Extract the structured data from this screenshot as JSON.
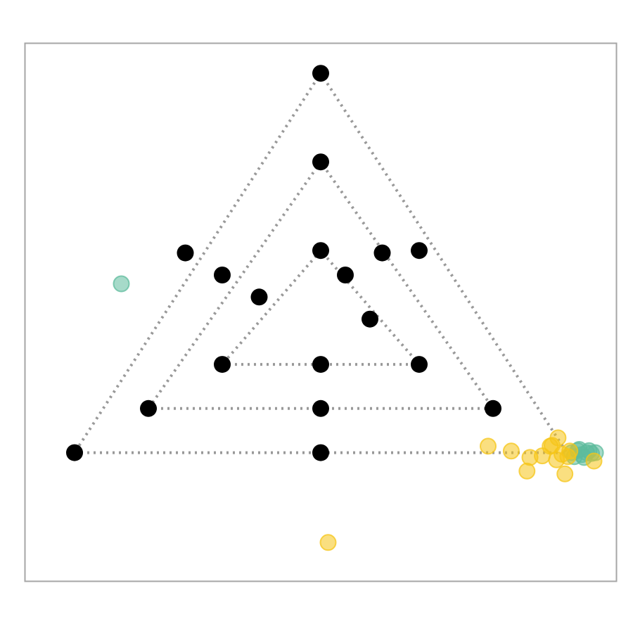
{
  "chart_data": {
    "type": "scatter",
    "title": "",
    "xlabel": "",
    "ylabel": "",
    "xlim": [
      -0.1,
      1.1
    ],
    "ylim": [
      -0.32,
      1.02
    ],
    "grid": false,
    "frame_color": "#a6a6a6",
    "guide_color": "#999999",
    "guide_style": "dotted",
    "triangle_guides": [
      {
        "name": "outer",
        "vertices": [
          [
            0.0,
            0.0
          ],
          [
            1.0,
            0.0
          ],
          [
            0.5,
            0.946
          ]
        ]
      },
      {
        "name": "middle",
        "vertices": [
          [
            0.15,
            0.11
          ],
          [
            0.85,
            0.11
          ],
          [
            0.5,
            0.725
          ]
        ]
      },
      {
        "name": "inner",
        "vertices": [
          [
            0.3,
            0.22
          ],
          [
            0.7,
            0.22
          ],
          [
            0.5,
            0.504
          ]
        ]
      }
    ],
    "series": [
      {
        "color": "#000000",
        "opacity": 1.0,
        "points": [
          {
            "x": 0.5,
            "y": 0.946
          },
          {
            "x": 0.225,
            "y": 0.498
          },
          {
            "x": 0.7,
            "y": 0.504
          },
          {
            "x": 0.0,
            "y": 0.0
          },
          {
            "x": 0.5,
            "y": 0.0
          },
          {
            "x": 0.5,
            "y": 0.725
          },
          {
            "x": 0.3,
            "y": 0.443
          },
          {
            "x": 0.625,
            "y": 0.498
          },
          {
            "x": 0.15,
            "y": 0.11
          },
          {
            "x": 0.5,
            "y": 0.11
          },
          {
            "x": 0.85,
            "y": 0.11
          },
          {
            "x": 0.5,
            "y": 0.504
          },
          {
            "x": 0.375,
            "y": 0.388
          },
          {
            "x": 0.55,
            "y": 0.443
          },
          {
            "x": 0.6,
            "y": 0.333
          },
          {
            "x": 0.3,
            "y": 0.22
          },
          {
            "x": 0.5,
            "y": 0.22
          },
          {
            "x": 0.7,
            "y": 0.22
          }
        ]
      },
      {
        "color": "#5dbb9c",
        "opacity": 0.55,
        "points": [
          {
            "x": 0.095,
            "y": 0.421
          },
          {
            "x": 1.01,
            "y": 0.0
          },
          {
            "x": 1.015,
            "y": -0.01
          },
          {
            "x": 1.022,
            "y": 0.005
          },
          {
            "x": 1.03,
            "y": -0.005
          },
          {
            "x": 1.04,
            "y": 0.0
          },
          {
            "x": 1.05,
            "y": -0.002
          },
          {
            "x": 1.058,
            "y": 0.0
          },
          {
            "x": 1.025,
            "y": 0.008
          },
          {
            "x": 1.035,
            "y": -0.012
          },
          {
            "x": 1.045,
            "y": 0.005
          }
        ]
      },
      {
        "color": "#f5c518",
        "opacity": 0.55,
        "points": [
          {
            "x": 0.515,
            "y": -0.224
          },
          {
            "x": 0.84,
            "y": 0.016
          },
          {
            "x": 0.887,
            "y": 0.004
          },
          {
            "x": 0.925,
            "y": -0.012
          },
          {
            "x": 0.919,
            "y": -0.046
          },
          {
            "x": 0.95,
            "y": -0.008
          },
          {
            "x": 0.966,
            "y": 0.016
          },
          {
            "x": 0.982,
            "y": 0.037
          },
          {
            "x": 0.979,
            "y": -0.018
          },
          {
            "x": 0.99,
            "y": -0.004
          },
          {
            "x": 0.996,
            "y": -0.053
          },
          {
            "x": 1.006,
            "y": 0.004
          },
          {
            "x": 1.002,
            "y": -0.01
          },
          {
            "x": 0.97,
            "y": 0.018
          },
          {
            "x": 1.055,
            "y": -0.021
          }
        ]
      }
    ]
  }
}
